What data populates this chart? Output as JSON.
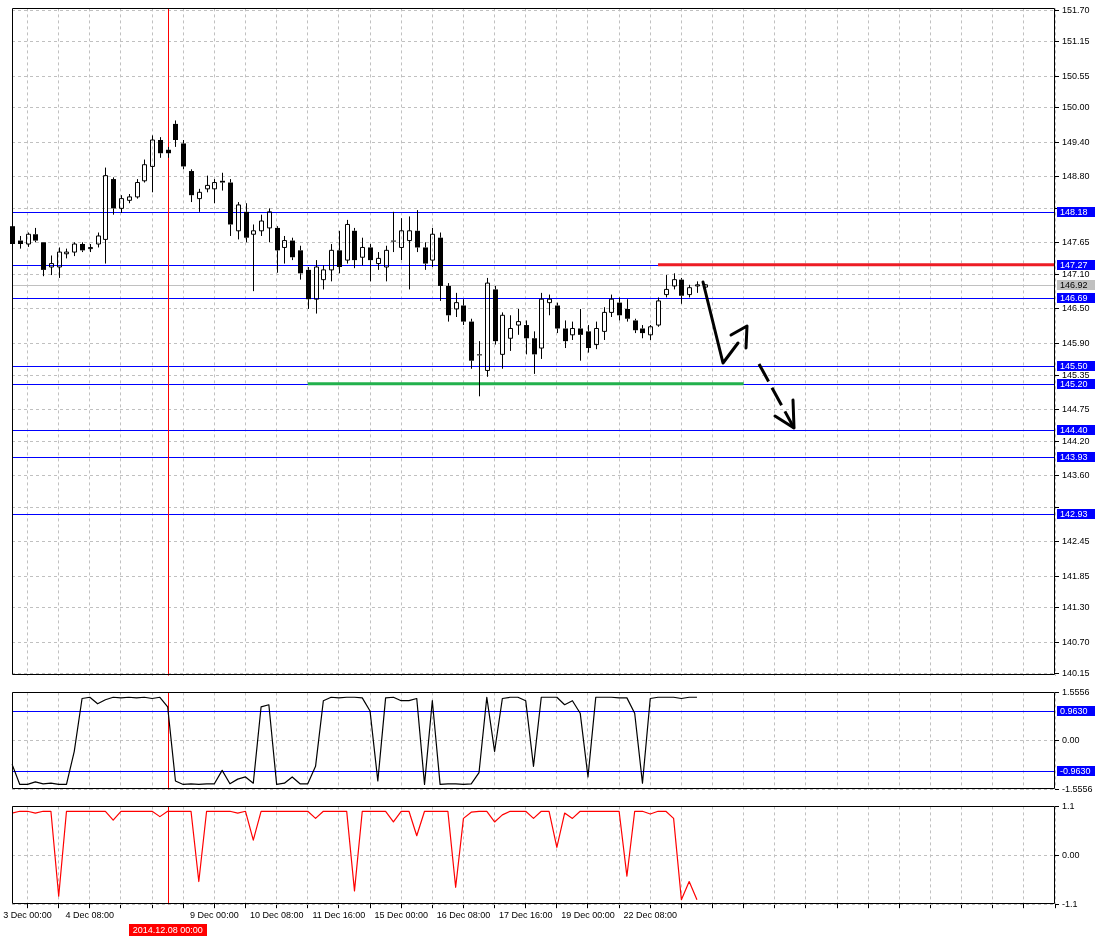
{
  "chart_data": [
    {
      "type": "candlestick",
      "color": "#000000",
      "categories": [
        null,
        null,
        "3 Dec 00:00",
        null,
        null,
        null,
        null,
        null,
        null,
        null,
        "4 Dec 08:00",
        null,
        null,
        null,
        null,
        null,
        null,
        null,
        null,
        null,
        "2014.12.08 00:00",
        null,
        null,
        null,
        null,
        null,
        "9 Dec 00:00",
        null,
        null,
        null,
        null,
        null,
        null,
        null,
        "10 Dec 08:00",
        null,
        null,
        null,
        null,
        null,
        null,
        null,
        "11 Dec 16:00",
        null,
        null,
        null,
        null,
        null,
        null,
        null,
        "15 Dec 00:00",
        null,
        null,
        null,
        null,
        null,
        null,
        null,
        "16 Dec 08:00",
        null,
        null,
        null,
        null,
        null,
        null,
        null,
        "17 Dec 16:00",
        null,
        null,
        null,
        null,
        null,
        null,
        null,
        "19 Dec 00:00",
        null,
        null,
        null,
        null,
        null,
        null,
        null,
        "22 Dec 08:00",
        null,
        null,
        null,
        null,
        null,
        null,
        null,
        null,
        null,
        null,
        null,
        null,
        null,
        null,
        null,
        null,
        null,
        null,
        null,
        null,
        null,
        null,
        null,
        null,
        null,
        null,
        null,
        null,
        null,
        null,
        null,
        null,
        null,
        null,
        null,
        null,
        null,
        null,
        null,
        null,
        null,
        null,
        null,
        null,
        null,
        null,
        null,
        null,
        null,
        null,
        null,
        null
      ],
      "ohlc": [
        [
          147.94,
          148.01,
          147.55,
          147.63
        ],
        [
          147.69,
          147.77,
          147.55,
          147.63
        ],
        [
          147.63,
          147.83,
          147.58,
          147.8
        ],
        [
          147.8,
          147.91,
          147.66,
          147.69
        ],
        [
          147.66,
          147.66,
          147.07,
          147.18
        ],
        [
          147.23,
          147.43,
          147.09,
          147.29
        ],
        [
          147.23,
          147.57,
          147.04,
          147.49
        ],
        [
          147.46,
          147.55,
          147.38,
          147.49
        ],
        [
          147.49,
          147.66,
          147.42,
          147.63
        ],
        [
          147.63,
          147.66,
          147.49,
          147.52
        ],
        [
          147.55,
          147.63,
          147.49,
          147.57
        ],
        [
          147.63,
          147.83,
          147.57,
          147.77
        ],
        [
          147.71,
          148.96,
          147.29,
          148.82
        ],
        [
          148.76,
          148.79,
          148.14,
          148.25
        ],
        [
          148.25,
          148.48,
          148.17,
          148.42
        ],
        [
          148.39,
          148.5,
          148.34,
          148.45
        ],
        [
          148.45,
          148.76,
          148.42,
          148.7
        ],
        [
          148.73,
          149.1,
          148.7,
          149.01
        ],
        [
          148.98,
          149.52,
          148.53,
          149.44
        ],
        [
          149.44,
          149.49,
          149.13,
          149.21
        ],
        [
          149.27,
          149.32,
          149.13,
          149.21
        ],
        [
          149.72,
          149.78,
          149.32,
          149.44
        ],
        [
          149.38,
          149.44,
          148.93,
          148.98
        ],
        [
          148.9,
          148.93,
          148.36,
          148.48
        ],
        [
          148.42,
          148.59,
          148.19,
          148.53
        ],
        [
          148.59,
          148.82,
          148.53,
          148.65
        ],
        [
          148.59,
          148.76,
          148.34,
          148.7
        ],
        [
          148.73,
          148.87,
          148.56,
          148.7
        ],
        [
          148.7,
          148.76,
          147.77,
          147.97
        ],
        [
          147.86,
          148.36,
          147.71,
          148.31
        ],
        [
          148.19,
          148.34,
          147.66,
          147.74
        ],
        [
          147.8,
          147.97,
          146.81,
          147.86
        ],
        [
          147.86,
          148.14,
          147.77,
          148.03
        ],
        [
          147.91,
          148.25,
          147.66,
          148.19
        ],
        [
          147.91,
          147.94,
          147.13,
          147.52
        ],
        [
          147.57,
          147.77,
          147.29,
          147.69
        ],
        [
          147.69,
          147.74,
          147.35,
          147.4
        ],
        [
          147.52,
          147.6,
          147.01,
          147.12
        ],
        [
          147.18,
          147.23,
          146.5,
          146.67
        ],
        [
          146.67,
          147.35,
          146.42,
          147.23
        ],
        [
          147.01,
          147.26,
          146.84,
          147.18
        ],
        [
          147.18,
          147.63,
          146.98,
          147.52
        ],
        [
          147.52,
          147.86,
          147.12,
          147.23
        ],
        [
          147.35,
          148.05,
          147.29,
          147.97
        ],
        [
          147.86,
          147.91,
          147.21,
          147.35
        ],
        [
          147.4,
          147.74,
          147.26,
          147.57
        ],
        [
          147.57,
          147.63,
          146.98,
          147.35
        ],
        [
          147.29,
          147.49,
          147.18,
          147.38
        ],
        [
          147.23,
          147.6,
          146.98,
          147.52
        ],
        [
          147.69,
          148.19,
          147.49,
          147.69
        ],
        [
          147.57,
          148.08,
          147.35,
          147.86
        ],
        [
          147.69,
          148.11,
          146.84,
          147.86
        ],
        [
          147.86,
          148.22,
          147.49,
          147.57
        ],
        [
          147.57,
          147.66,
          147.18,
          147.29
        ],
        [
          147.35,
          147.91,
          147.23,
          147.8
        ],
        [
          147.74,
          147.83,
          146.64,
          146.9
        ],
        [
          146.9,
          146.95,
          146.28,
          146.39
        ],
        [
          146.5,
          146.78,
          146.36,
          146.61
        ],
        [
          146.56,
          146.67,
          146.22,
          146.28
        ],
        [
          146.28,
          146.33,
          145.46,
          145.6
        ],
        [
          145.71,
          145.94,
          144.98,
          145.71
        ],
        [
          145.43,
          147.04,
          145.32,
          146.95
        ],
        [
          146.84,
          146.9,
          145.88,
          145.94
        ],
        [
          145.71,
          146.44,
          145.46,
          146.39
        ],
        [
          145.99,
          146.39,
          145.77,
          146.16
        ],
        [
          146.22,
          146.5,
          146.05,
          146.28
        ],
        [
          146.22,
          146.3,
          145.71,
          145.99
        ],
        [
          145.99,
          146.11,
          145.37,
          145.71
        ],
        [
          145.82,
          146.78,
          145.63,
          146.67
        ],
        [
          146.61,
          146.75,
          146.39,
          146.67
        ],
        [
          146.56,
          146.61,
          146.08,
          146.16
        ],
        [
          146.16,
          146.3,
          145.82,
          145.94
        ],
        [
          146.05,
          146.28,
          145.96,
          146.16
        ],
        [
          146.16,
          146.5,
          145.6,
          146.05
        ],
        [
          146.11,
          146.22,
          145.74,
          145.82
        ],
        [
          145.88,
          146.28,
          145.8,
          146.16
        ],
        [
          146.11,
          146.53,
          145.96,
          146.44
        ],
        [
          146.44,
          146.75,
          146.36,
          146.67
        ],
        [
          146.61,
          146.7,
          146.3,
          146.39
        ],
        [
          146.5,
          146.67,
          146.28,
          146.33
        ],
        [
          146.3,
          146.33,
          146.08,
          146.13
        ],
        [
          146.16,
          146.22,
          145.99,
          146.08
        ],
        [
          146.05,
          146.22,
          145.96,
          146.19
        ],
        [
          146.22,
          146.7,
          146.19,
          146.64
        ],
        [
          146.75,
          147.09,
          146.7,
          146.84
        ],
        [
          146.9,
          147.12,
          146.84,
          147.01
        ],
        [
          147.01,
          147.04,
          146.59,
          146.73
        ],
        [
          146.75,
          146.92,
          146.7,
          146.87
        ],
        [
          146.9,
          146.98,
          146.78,
          146.92
        ],
        [
          146.88,
          146.93,
          146.84,
          146.92
        ],
        null,
        null,
        null,
        null,
        null,
        null,
        null,
        null,
        null,
        null,
        null,
        null,
        null,
        null,
        null,
        null,
        null,
        null,
        null,
        null,
        null,
        null,
        null,
        null,
        null,
        null,
        null,
        null,
        null,
        null,
        null,
        null,
        null,
        null,
        null,
        null,
        null,
        null,
        null,
        null,
        null,
        null,
        null,
        null,
        null
      ],
      "series": [
        {
          "type": "line",
          "color": "#ed1c24",
          "values": [
            null,
            null,
            null,
            null,
            null,
            null,
            null,
            null,
            null,
            null,
            null,
            null,
            null,
            null,
            null,
            null,
            null,
            null,
            null,
            null,
            null,
            null,
            null,
            null,
            null,
            null,
            null,
            null,
            null,
            null,
            null,
            null,
            null,
            null,
            null,
            null,
            null,
            null,
            null,
            null,
            null,
            null,
            null,
            null,
            null,
            null,
            null,
            null,
            null,
            null,
            null,
            null,
            null,
            null,
            null,
            null,
            null,
            null,
            null,
            null,
            null,
            null,
            null,
            null,
            null,
            null,
            null,
            null,
            null,
            null,
            null,
            null,
            null,
            null,
            null,
            null,
            null,
            null,
            null,
            null,
            null,
            null,
            null,
            147.27,
            147.27,
            147.27,
            147.27,
            147.27,
            147.27,
            147.27,
            147.27,
            147.27,
            147.27,
            147.27,
            147.27,
            147.27,
            147.27,
            147.27,
            147.27,
            147.27,
            147.27,
            147.27,
            147.27,
            147.27,
            147.27,
            147.27,
            147.27,
            147.27,
            147.27,
            147.27,
            147.27,
            147.27,
            147.27,
            147.27,
            147.27,
            147.27,
            147.27,
            147.27,
            147.27,
            147.27,
            147.27,
            147.27,
            147.27,
            147.27,
            147.27,
            147.27,
            147.27,
            147.27,
            147.27,
            147.27,
            147.27,
            147.27,
            147.27,
            147.27,
            147.27
          ]
        },
        {
          "type": "line",
          "color": "#22b14c",
          "values": [
            null,
            null,
            null,
            null,
            null,
            null,
            null,
            null,
            null,
            null,
            null,
            null,
            null,
            null,
            null,
            null,
            null,
            null,
            null,
            null,
            null,
            null,
            null,
            null,
            null,
            null,
            null,
            null,
            null,
            null,
            null,
            null,
            null,
            null,
            null,
            null,
            null,
            null,
            145.2,
            145.2,
            145.2,
            145.2,
            145.2,
            145.2,
            145.2,
            145.2,
            145.2,
            145.2,
            145.2,
            145.2,
            145.2,
            145.2,
            145.2,
            145.2,
            145.2,
            145.2,
            145.2,
            145.2,
            145.2,
            145.2,
            145.2,
            145.2,
            145.2,
            145.2,
            145.2,
            145.2,
            145.2,
            145.2,
            145.2,
            145.2,
            145.2,
            145.2,
            145.2,
            145.2,
            145.2,
            145.2,
            145.2,
            145.2,
            145.2,
            145.2,
            145.2,
            145.2,
            145.2,
            145.2,
            145.2,
            145.2,
            145.2,
            145.2,
            145.2,
            145.2,
            145.2,
            145.2,
            145.2,
            145.2,
            145.2,
            null,
            null,
            null,
            null,
            null,
            null,
            null,
            null,
            null,
            null,
            null,
            null,
            null,
            null,
            null,
            null,
            null,
            null,
            null,
            null,
            null,
            null,
            null,
            null,
            null,
            null,
            null,
            null,
            null,
            null,
            null,
            null,
            null,
            null,
            null,
            null,
            null,
            null,
            null,
            null
          ]
        }
      ],
      "ylim": [
        140.12,
        151.73
      ],
      "yticks": [
        {
          "value": 140.15,
          "label": "140.15"
        },
        {
          "value": 140.7,
          "label": "140.70"
        },
        {
          "value": 141.3,
          "label": "141.30"
        },
        {
          "value": 141.85,
          "label": "141.85"
        },
        {
          "value": 142.45,
          "label": "142.45"
        },
        {
          "value": 143.05,
          "label": null
        },
        {
          "value": 143.6,
          "label": "143.60"
        },
        {
          "value": 144.2,
          "label": "144.20"
        },
        {
          "value": 144.75,
          "label": "144.75"
        },
        {
          "value": 145.35,
          "label": "145.35"
        },
        {
          "value": 145.9,
          "label": "145.90"
        },
        {
          "value": 146.5,
          "label": "146.50"
        },
        {
          "value": 147.1,
          "label": "147.10"
        },
        {
          "value": 147.65,
          "label": "147.65"
        },
        {
          "value": 148.25,
          "label": null
        },
        {
          "value": 148.8,
          "label": "148.80"
        },
        {
          "value": 149.4,
          "label": "149.40"
        },
        {
          "value": 150,
          "label": "150.00"
        },
        {
          "value": 150.55,
          "label": "150.55"
        },
        {
          "value": 151.15,
          "label": "151.15"
        },
        {
          "value": 151.7,
          "label": "151.70"
        }
      ],
      "grid": true,
      "tick_labels": "y",
      "ref_lines": [
        {
          "axis": "y",
          "value": 148.18,
          "label": "148.18",
          "color": "#0000ff"
        },
        {
          "axis": "y",
          "value": 147.27,
          "label": "147.27",
          "color": "#0000ff"
        },
        {
          "axis": "y",
          "value": 146.92,
          "label": "146.92",
          "color": "#c0c0c0"
        },
        {
          "axis": "y",
          "value": 146.69,
          "label": "146.69",
          "color": "#0000ff"
        },
        {
          "axis": "y",
          "value": 145.5,
          "label": "145.50",
          "color": "#0000ff"
        },
        {
          "axis": "y",
          "value": 145.2,
          "label": "145.20",
          "color": "#0000ff"
        },
        {
          "axis": "y",
          "value": 144.4,
          "label": "144.40",
          "color": "#0000ff"
        },
        {
          "axis": "y",
          "value": 143.93,
          "label": "143.93",
          "color": "#0000ff"
        },
        {
          "axis": "y",
          "value": 142.93,
          "label": "142.93",
          "color": "#0000ff"
        },
        {
          "axis": "x",
          "value": "2014.12.08 00:00",
          "color": "#ff0000"
        }
      ]
    },
    {
      "type": "line",
      "color": "#000000",
      "categories": [
        null,
        null,
        "3 Dec 00:00",
        null,
        null,
        null,
        null,
        null,
        null,
        null,
        "4 Dec 08:00",
        null,
        null,
        null,
        null,
        null,
        null,
        null,
        null,
        null,
        "2014.12.08 00:00",
        null,
        null,
        null,
        null,
        null,
        "9 Dec 00:00",
        null,
        null,
        null,
        null,
        null,
        null,
        null,
        "10 Dec 08:00",
        null,
        null,
        null,
        null,
        null,
        null,
        null,
        "11 Dec 16:00",
        null,
        null,
        null,
        null,
        null,
        null,
        null,
        "15 Dec 00:00",
        null,
        null,
        null,
        null,
        null,
        null,
        null,
        "16 Dec 08:00",
        null,
        null,
        null,
        null,
        null,
        null,
        null,
        "17 Dec 16:00",
        null,
        null,
        null,
        null,
        null,
        null,
        null,
        "19 Dec 00:00",
        null,
        null,
        null,
        null,
        null,
        null,
        null,
        "22 Dec 08:00",
        null,
        null,
        null,
        null,
        null,
        null,
        null,
        null,
        null,
        null,
        null,
        null,
        null,
        null,
        null,
        null,
        null,
        null,
        null,
        null,
        null,
        null,
        null,
        null,
        null,
        null,
        null,
        null,
        null,
        null,
        null,
        null,
        null,
        null,
        null,
        null,
        null,
        null,
        null,
        null,
        null,
        null,
        null,
        null,
        null,
        null,
        null,
        null,
        null,
        null,
        null,
        null
      ],
      "values": [
        -0.74,
        -1.39,
        -1.39,
        -1.31,
        -1.37,
        -1.35,
        -1.39,
        -1.39,
        -0.33,
        1.36,
        1.4,
        1.19,
        1.32,
        1.4,
        1.38,
        1.4,
        1.38,
        1.4,
        1.36,
        1.4,
        1.09,
        -1.28,
        -1.39,
        -1.37,
        -1.39,
        -1.37,
        -1.37,
        -0.94,
        -1.37,
        -1.22,
        -1.15,
        -1.35,
        1.09,
        1.16,
        -1.39,
        -1.35,
        -1.15,
        -1.37,
        -1.37,
        -0.81,
        1.29,
        1.4,
        1.38,
        1.4,
        1.4,
        1.38,
        0.96,
        -1.28,
        1.38,
        1.4,
        1.29,
        1.29,
        1.36,
        -1.39,
        1.29,
        -1.39,
        -1.37,
        -1.37,
        -1.39,
        -1.37,
        -1.01,
        1.4,
        -0.33,
        1.36,
        1.4,
        1.4,
        1.29,
        -0.81,
        1.4,
        1.4,
        1.4,
        1.16,
        1.29,
        0.89,
        -1.15,
        1.4,
        1.4,
        1.4,
        1.38,
        1.38,
        0.89,
        -1.35,
        1.36,
        1.4,
        1.4,
        1.4,
        1.36,
        1.4,
        1.4,
        null,
        null,
        null,
        null,
        null,
        null,
        null,
        null,
        null,
        null,
        null,
        null,
        null,
        null,
        null,
        null,
        null,
        null,
        null,
        null,
        null,
        null,
        null,
        null,
        null,
        null,
        null,
        null,
        null,
        null,
        null,
        null,
        null,
        null,
        null,
        null,
        null,
        null,
        null,
        null,
        null,
        null,
        null,
        null,
        null,
        null
      ],
      "ylim": [
        -1.5556,
        1.5556
      ],
      "yticks": [
        -1.5556,
        {
          "value": 0,
          "label": "0.00"
        },
        1.5556
      ],
      "grid": true,
      "tick_labels": "y",
      "ref_lines": [
        {
          "axis": "y",
          "value": 0.963,
          "label": "0.9630",
          "color": "#0000ff"
        },
        {
          "axis": "y",
          "value": -0.963,
          "label": "-0.9630",
          "color": "#0000ff"
        },
        {
          "axis": "x",
          "value": "2014.12.08 00:00",
          "color": "#ff0000"
        }
      ]
    },
    {
      "type": "line",
      "color": "#ff0000",
      "categories": [
        null,
        null,
        "3 Dec 00:00",
        null,
        null,
        null,
        null,
        null,
        null,
        null,
        "4 Dec 08:00",
        null,
        null,
        null,
        null,
        null,
        null,
        null,
        null,
        null,
        "2014.12.08 00:00",
        null,
        null,
        null,
        null,
        null,
        "9 Dec 00:00",
        null,
        null,
        null,
        null,
        null,
        null,
        null,
        "10 Dec 08:00",
        null,
        null,
        null,
        null,
        null,
        null,
        null,
        "11 Dec 16:00",
        null,
        null,
        null,
        null,
        null,
        null,
        null,
        "15 Dec 00:00",
        null,
        null,
        null,
        null,
        null,
        null,
        null,
        "16 Dec 08:00",
        null,
        null,
        null,
        null,
        null,
        null,
        null,
        "17 Dec 16:00",
        null,
        null,
        null,
        null,
        null,
        null,
        null,
        "19 Dec 00:00",
        null,
        null,
        null,
        null,
        null,
        null,
        null,
        "22 Dec 08:00",
        null,
        null,
        null,
        null,
        null,
        null,
        null,
        null,
        null,
        null,
        null,
        null,
        null,
        null,
        null,
        null,
        null,
        null,
        null,
        null,
        null,
        null,
        null,
        null,
        null,
        null,
        null,
        null,
        null,
        null,
        null,
        null,
        null,
        null,
        null,
        null,
        null,
        null,
        null,
        null,
        null,
        null,
        null,
        null,
        null,
        null,
        null,
        null,
        null,
        null,
        null,
        null
      ],
      "values": [
        0.95,
        0.99,
        0.99,
        0.95,
        0.99,
        0.99,
        -0.92,
        0.99,
        0.99,
        0.99,
        0.99,
        0.99,
        0.99,
        0.79,
        0.99,
        0.99,
        0.99,
        0.99,
        0.99,
        0.87,
        0.99,
        0.99,
        0.99,
        0.99,
        -0.59,
        0.99,
        0.99,
        0.99,
        0.99,
        0.95,
        0.99,
        0.34,
        0.99,
        0.99,
        0.99,
        0.99,
        0.99,
        0.99,
        0.99,
        0.83,
        0.99,
        0.99,
        0.99,
        0.99,
        -0.8,
        0.99,
        0.99,
        0.99,
        0.99,
        0.75,
        0.99,
        0.99,
        0.44,
        0.99,
        0.99,
        0.99,
        0.99,
        -0.72,
        0.83,
        0.97,
        0.99,
        0.99,
        0.75,
        0.91,
        0.99,
        0.99,
        0.99,
        0.83,
        0.99,
        0.99,
        0.18,
        0.95,
        0.83,
        0.99,
        0.99,
        0.99,
        0.99,
        0.99,
        0.99,
        -0.47,
        0.99,
        0.99,
        0.93,
        0.99,
        0.99,
        0.83,
        -1,
        -0.59,
        -1,
        null,
        null,
        null,
        null,
        null,
        null,
        null,
        null,
        null,
        null,
        null,
        null,
        null,
        null,
        null,
        null,
        null,
        null,
        null,
        null,
        null,
        null,
        null,
        null,
        null,
        null,
        null,
        null,
        null,
        null,
        null,
        null,
        null,
        null,
        null,
        null,
        null,
        null,
        null,
        null,
        null,
        null,
        null,
        null,
        null,
        null
      ],
      "ylim": [
        -1.1,
        1.1
      ],
      "yticks": [
        -1.1,
        {
          "value": 0,
          "label": "0.00"
        },
        1.1
      ],
      "grid": true,
      "ref_lines": [
        {
          "axis": "x",
          "value": "2014.12.08 00:00",
          "color": "#ff0000"
        }
      ]
    }
  ]
}
